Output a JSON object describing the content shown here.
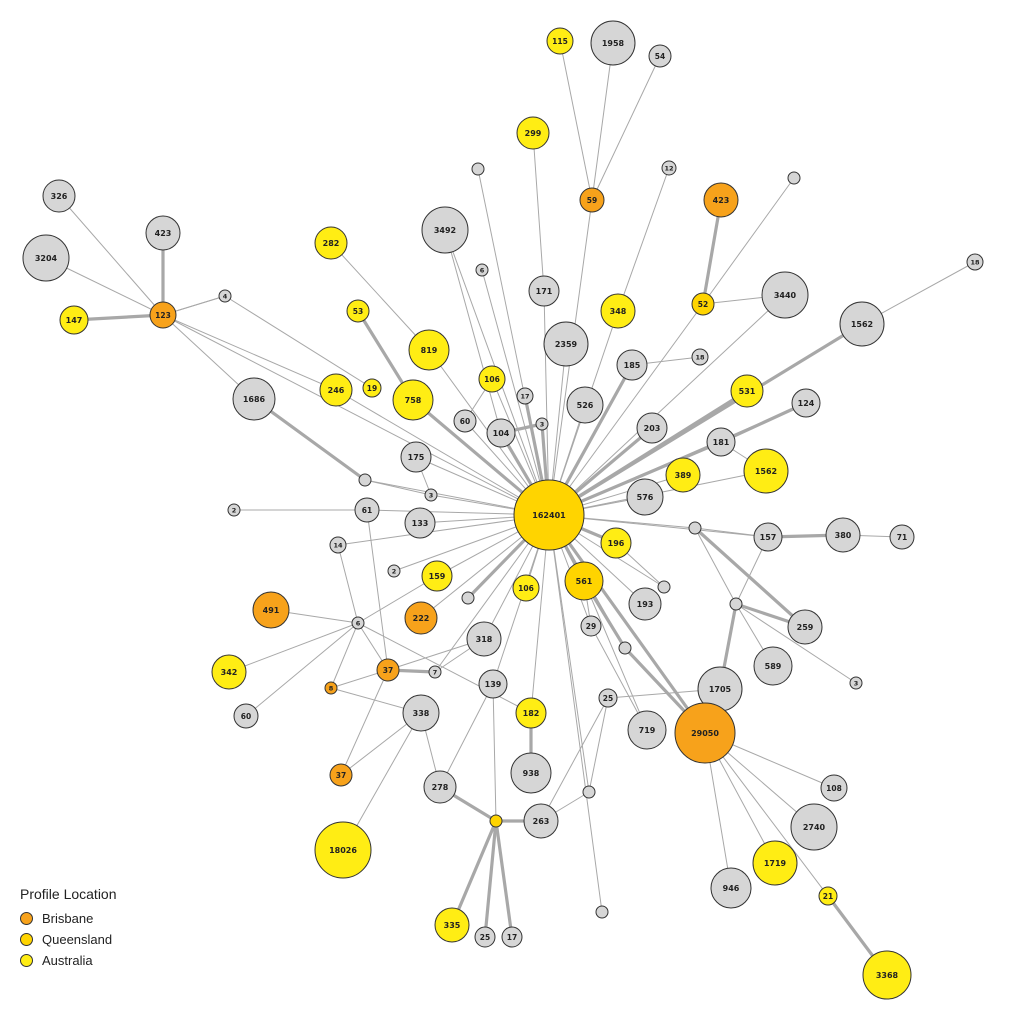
{
  "legend": {
    "title": "Profile Location",
    "items": [
      {
        "label": "Brisbane",
        "color": "#f7a21b"
      },
      {
        "label": "Queensland",
        "color": "#ffd400"
      },
      {
        "label": "Australia",
        "color": "#ffed14"
      }
    ]
  },
  "colors": {
    "brisbane": "#f7a21b",
    "queensland": "#ffd400",
    "australia": "#ffed14",
    "other": "#d6d6d6"
  },
  "graph": {
    "nodes": [
      {
        "id": "center",
        "label": "162401",
        "cat": "queensland"
      },
      {
        "id": "n115",
        "label": "115",
        "cat": "australia"
      },
      {
        "id": "n1958",
        "label": "1958",
        "cat": "other"
      },
      {
        "id": "n54",
        "label": "54",
        "cat": "other"
      },
      {
        "id": "n299",
        "label": "299",
        "cat": "australia"
      },
      {
        "id": "n59",
        "label": "59",
        "cat": "brisbane"
      },
      {
        "id": "n12",
        "label": "12",
        "cat": "other"
      },
      {
        "id": "n423b",
        "label": "423",
        "cat": "brisbane"
      },
      {
        "id": "e1",
        "label": "",
        "cat": "other"
      },
      {
        "id": "e2",
        "label": "",
        "cat": "other"
      },
      {
        "id": "n326",
        "label": "326",
        "cat": "other"
      },
      {
        "id": "n423",
        "label": "423",
        "cat": "other"
      },
      {
        "id": "n3204",
        "label": "3204",
        "cat": "other"
      },
      {
        "id": "n3492",
        "label": "3492",
        "cat": "other"
      },
      {
        "id": "n282",
        "label": "282",
        "cat": "australia"
      },
      {
        "id": "n6a",
        "label": "6",
        "cat": "other"
      },
      {
        "id": "n171",
        "label": "171",
        "cat": "other"
      },
      {
        "id": "n18",
        "label": "18",
        "cat": "other"
      },
      {
        "id": "n147",
        "label": "147",
        "cat": "australia"
      },
      {
        "id": "n123",
        "label": "123",
        "cat": "brisbane"
      },
      {
        "id": "n4",
        "label": "4",
        "cat": "other"
      },
      {
        "id": "n53",
        "label": "53",
        "cat": "australia"
      },
      {
        "id": "n348",
        "label": "348",
        "cat": "australia"
      },
      {
        "id": "n52",
        "label": "52",
        "cat": "queensland"
      },
      {
        "id": "n3440",
        "label": "3440",
        "cat": "other"
      },
      {
        "id": "n1562a",
        "label": "1562",
        "cat": "other"
      },
      {
        "id": "n2359",
        "label": "2359",
        "cat": "other"
      },
      {
        "id": "n819",
        "label": "819",
        "cat": "australia"
      },
      {
        "id": "n106a",
        "label": "106",
        "cat": "australia"
      },
      {
        "id": "n185",
        "label": "185",
        "cat": "other"
      },
      {
        "id": "n18b",
        "label": "18",
        "cat": "other"
      },
      {
        "id": "n1686",
        "label": "1686",
        "cat": "other"
      },
      {
        "id": "n246",
        "label": "246",
        "cat": "australia"
      },
      {
        "id": "n19",
        "label": "19",
        "cat": "australia"
      },
      {
        "id": "n758",
        "label": "758",
        "cat": "australia"
      },
      {
        "id": "n17a",
        "label": "17",
        "cat": "other"
      },
      {
        "id": "n526",
        "label": "526",
        "cat": "other"
      },
      {
        "id": "n531",
        "label": "531",
        "cat": "australia"
      },
      {
        "id": "n124",
        "label": "124",
        "cat": "other"
      },
      {
        "id": "n60a",
        "label": "60",
        "cat": "other"
      },
      {
        "id": "n104",
        "label": "104",
        "cat": "other"
      },
      {
        "id": "n3a",
        "label": "3",
        "cat": "other"
      },
      {
        "id": "n203",
        "label": "203",
        "cat": "other"
      },
      {
        "id": "n181",
        "label": "181",
        "cat": "other"
      },
      {
        "id": "n175",
        "label": "175",
        "cat": "other"
      },
      {
        "id": "n389",
        "label": "389",
        "cat": "australia"
      },
      {
        "id": "n1562b",
        "label": "1562",
        "cat": "australia"
      },
      {
        "id": "e3",
        "label": "",
        "cat": "other"
      },
      {
        "id": "n3b",
        "label": "3",
        "cat": "other"
      },
      {
        "id": "n576",
        "label": "576",
        "cat": "other"
      },
      {
        "id": "n2a",
        "label": "2",
        "cat": "other"
      },
      {
        "id": "n61",
        "label": "61",
        "cat": "other"
      },
      {
        "id": "n133",
        "label": "133",
        "cat": "other"
      },
      {
        "id": "e4",
        "label": "",
        "cat": "other"
      },
      {
        "id": "n157",
        "label": "157",
        "cat": "other"
      },
      {
        "id": "n380",
        "label": "380",
        "cat": "other"
      },
      {
        "id": "n71",
        "label": "71",
        "cat": "other"
      },
      {
        "id": "n14",
        "label": "14",
        "cat": "other"
      },
      {
        "id": "n196",
        "label": "196",
        "cat": "australia"
      },
      {
        "id": "n2b",
        "label": "2",
        "cat": "other"
      },
      {
        "id": "n159",
        "label": "159",
        "cat": "australia"
      },
      {
        "id": "n106b",
        "label": "106",
        "cat": "australia"
      },
      {
        "id": "n561",
        "label": "561",
        "cat": "queensland"
      },
      {
        "id": "e5",
        "label": "",
        "cat": "other"
      },
      {
        "id": "e6",
        "label": "",
        "cat": "other"
      },
      {
        "id": "e7",
        "label": "",
        "cat": "other"
      },
      {
        "id": "n491",
        "label": "491",
        "cat": "brisbane"
      },
      {
        "id": "n222",
        "label": "222",
        "cat": "brisbane"
      },
      {
        "id": "n193",
        "label": "193",
        "cat": "other"
      },
      {
        "id": "n6b",
        "label": "6",
        "cat": "other"
      },
      {
        "id": "n29",
        "label": "29",
        "cat": "other"
      },
      {
        "id": "n259",
        "label": "259",
        "cat": "other"
      },
      {
        "id": "n318",
        "label": "318",
        "cat": "other"
      },
      {
        "id": "e8",
        "label": "",
        "cat": "other"
      },
      {
        "id": "n342",
        "label": "342",
        "cat": "australia"
      },
      {
        "id": "n37a",
        "label": "37",
        "cat": "brisbane"
      },
      {
        "id": "n7",
        "label": "7",
        "cat": "other"
      },
      {
        "id": "n589",
        "label": "589",
        "cat": "other"
      },
      {
        "id": "n8",
        "label": "8",
        "cat": "brisbane"
      },
      {
        "id": "n139",
        "label": "139",
        "cat": "other"
      },
      {
        "id": "n3c",
        "label": "3",
        "cat": "other"
      },
      {
        "id": "n1705",
        "label": "1705",
        "cat": "other"
      },
      {
        "id": "n25a",
        "label": "25",
        "cat": "other"
      },
      {
        "id": "n60b",
        "label": "60",
        "cat": "other"
      },
      {
        "id": "n338",
        "label": "338",
        "cat": "other"
      },
      {
        "id": "n182",
        "label": "182",
        "cat": "australia"
      },
      {
        "id": "n719",
        "label": "719",
        "cat": "other"
      },
      {
        "id": "n29050",
        "label": "29050",
        "cat": "brisbane"
      },
      {
        "id": "n37b",
        "label": "37",
        "cat": "brisbane"
      },
      {
        "id": "n938",
        "label": "938",
        "cat": "other"
      },
      {
        "id": "n278",
        "label": "278",
        "cat": "other"
      },
      {
        "id": "e9",
        "label": "",
        "cat": "other"
      },
      {
        "id": "n108",
        "label": "108",
        "cat": "other"
      },
      {
        "id": "n263",
        "label": "263",
        "cat": "other"
      },
      {
        "id": "e10",
        "label": "",
        "cat": "queensland"
      },
      {
        "id": "n2740",
        "label": "2740",
        "cat": "other"
      },
      {
        "id": "n18026",
        "label": "18026",
        "cat": "australia"
      },
      {
        "id": "n1719",
        "label": "1719",
        "cat": "australia"
      },
      {
        "id": "n946",
        "label": "946",
        "cat": "other"
      },
      {
        "id": "n21",
        "label": "21",
        "cat": "australia"
      },
      {
        "id": "e11",
        "label": "",
        "cat": "other"
      },
      {
        "id": "n335",
        "label": "335",
        "cat": "australia"
      },
      {
        "id": "n25b",
        "label": "25",
        "cat": "other"
      },
      {
        "id": "n17b",
        "label": "17",
        "cat": "other"
      },
      {
        "id": "n3368",
        "label": "3368",
        "cat": "australia"
      }
    ],
    "edges": [
      [
        "center",
        "n171"
      ],
      [
        "center",
        "n2359"
      ],
      [
        "center",
        "n59"
      ],
      [
        "center",
        "n348"
      ],
      [
        "center",
        "n6a"
      ],
      [
        "center",
        "e1"
      ],
      [
        "center",
        "n52"
      ],
      [
        "center",
        "n3440"
      ],
      [
        "center",
        "n1562a"
      ],
      [
        "center",
        "n185"
      ],
      [
        "center",
        "n526"
      ],
      [
        "center",
        "n531"
      ],
      [
        "center",
        "n203"
      ],
      [
        "center",
        "n181"
      ],
      [
        "center",
        "n124"
      ],
      [
        "center",
        "n389"
      ],
      [
        "center",
        "n1562b"
      ],
      [
        "center",
        "n576"
      ],
      [
        "center",
        "n3a"
      ],
      [
        "center",
        "n104"
      ],
      [
        "center",
        "n17a"
      ],
      [
        "center",
        "n106a"
      ],
      [
        "center",
        "n60a"
      ],
      [
        "center",
        "n758"
      ],
      [
        "center",
        "n819"
      ],
      [
        "center",
        "n3492"
      ],
      [
        "center",
        "n175"
      ],
      [
        "center",
        "n3b"
      ],
      [
        "center",
        "e3"
      ],
      [
        "center",
        "n61"
      ],
      [
        "center",
        "n133"
      ],
      [
        "center",
        "n14"
      ],
      [
        "center",
        "n2b"
      ],
      [
        "center",
        "n159"
      ],
      [
        "center",
        "e5"
      ],
      [
        "center",
        "n106b"
      ],
      [
        "center",
        "n222"
      ],
      [
        "center",
        "n318"
      ],
      [
        "center",
        "n7"
      ],
      [
        "center",
        "n139"
      ],
      [
        "center",
        "n182"
      ],
      [
        "center",
        "n561"
      ],
      [
        "center",
        "n196"
      ],
      [
        "center",
        "n193"
      ],
      [
        "center",
        "e6"
      ],
      [
        "center",
        "n29050"
      ],
      [
        "center",
        "e4"
      ],
      [
        "center",
        "n157"
      ],
      [
        "center",
        "e11"
      ],
      [
        "center",
        "e9"
      ],
      [
        "center",
        "n29"
      ],
      [
        "center",
        "n246"
      ],
      [
        "center",
        "n123"
      ],
      [
        "center",
        "e8"
      ],
      [
        "n59",
        "n115"
      ],
      [
        "n59",
        "n1958"
      ],
      [
        "n59",
        "n54"
      ],
      [
        "n171",
        "n299"
      ],
      [
        "n348",
        "n12"
      ],
      [
        "n52",
        "n423b"
      ],
      [
        "n52",
        "n3440"
      ],
      [
        "n52",
        "e2"
      ],
      [
        "n123",
        "n326"
      ],
      [
        "n123",
        "n423"
      ],
      [
        "n123",
        "n3204"
      ],
      [
        "n123",
        "n147"
      ],
      [
        "n123",
        "n4"
      ],
      [
        "n4",
        "n19"
      ],
      [
        "n123",
        "n246"
      ],
      [
        "n123",
        "n1686"
      ],
      [
        "n1686",
        "e3"
      ],
      [
        "n53",
        "n758"
      ],
      [
        "n282",
        "n819"
      ],
      [
        "n1562a",
        "n18"
      ],
      [
        "n185",
        "n18b"
      ],
      [
        "n181",
        "n124"
      ],
      [
        "n181",
        "n1562b"
      ],
      [
        "n104",
        "n3a"
      ],
      [
        "n60a",
        "n106a"
      ],
      [
        "n3492",
        "n104"
      ],
      [
        "n175",
        "n3b"
      ],
      [
        "n61",
        "n2a"
      ],
      [
        "e3",
        "n3b"
      ],
      [
        "n157",
        "n380"
      ],
      [
        "n380",
        "n71"
      ],
      [
        "e4",
        "n157"
      ],
      [
        "e4",
        "n259"
      ],
      [
        "e4",
        "e7"
      ],
      [
        "e7",
        "n259"
      ],
      [
        "e7",
        "n1705"
      ],
      [
        "e7",
        "n589"
      ],
      [
        "e7",
        "n3c"
      ],
      [
        "e7",
        "n157"
      ],
      [
        "n196",
        "e6"
      ],
      [
        "n1705",
        "n29050"
      ],
      [
        "n1705",
        "n25a"
      ],
      [
        "n25a",
        "e9"
      ],
      [
        "n29050",
        "n108"
      ],
      [
        "n29050",
        "n2740"
      ],
      [
        "n29050",
        "n1719"
      ],
      [
        "n29050",
        "n946"
      ],
      [
        "n29050",
        "n21"
      ],
      [
        "n21",
        "n3368"
      ],
      [
        "n491",
        "n6b"
      ],
      [
        "n342",
        "n6b"
      ],
      [
        "n6b",
        "n159"
      ],
      [
        "n6b",
        "n60b"
      ],
      [
        "n6b",
        "n8"
      ],
      [
        "n6b",
        "n14"
      ],
      [
        "n6b",
        "n182"
      ],
      [
        "n6b",
        "n37a"
      ],
      [
        "n37a",
        "n7"
      ],
      [
        "n37a",
        "n318"
      ],
      [
        "n37a",
        "n8"
      ],
      [
        "n37a",
        "n37b"
      ],
      [
        "n37a",
        "n61"
      ],
      [
        "n338",
        "n278"
      ],
      [
        "n338",
        "n18026"
      ],
      [
        "n338",
        "n37b"
      ],
      [
        "n338",
        "n8"
      ],
      [
        "n139",
        "n278"
      ],
      [
        "n182",
        "n938"
      ],
      [
        "n278",
        "e10"
      ],
      [
        "e10",
        "n263"
      ],
      [
        "e10",
        "n335"
      ],
      [
        "e10",
        "n25b"
      ],
      [
        "e10",
        "n17b"
      ],
      [
        "e10",
        "n139"
      ],
      [
        "n263",
        "e9"
      ],
      [
        "n263",
        "n25a"
      ],
      [
        "n561",
        "n719"
      ],
      [
        "n561",
        "n29"
      ],
      [
        "n29",
        "n719"
      ],
      [
        "e8",
        "n29050"
      ],
      [
        "n561",
        "e8"
      ],
      [
        "n7",
        "n318"
      ],
      [
        "n4",
        "n123"
      ]
    ]
  }
}
